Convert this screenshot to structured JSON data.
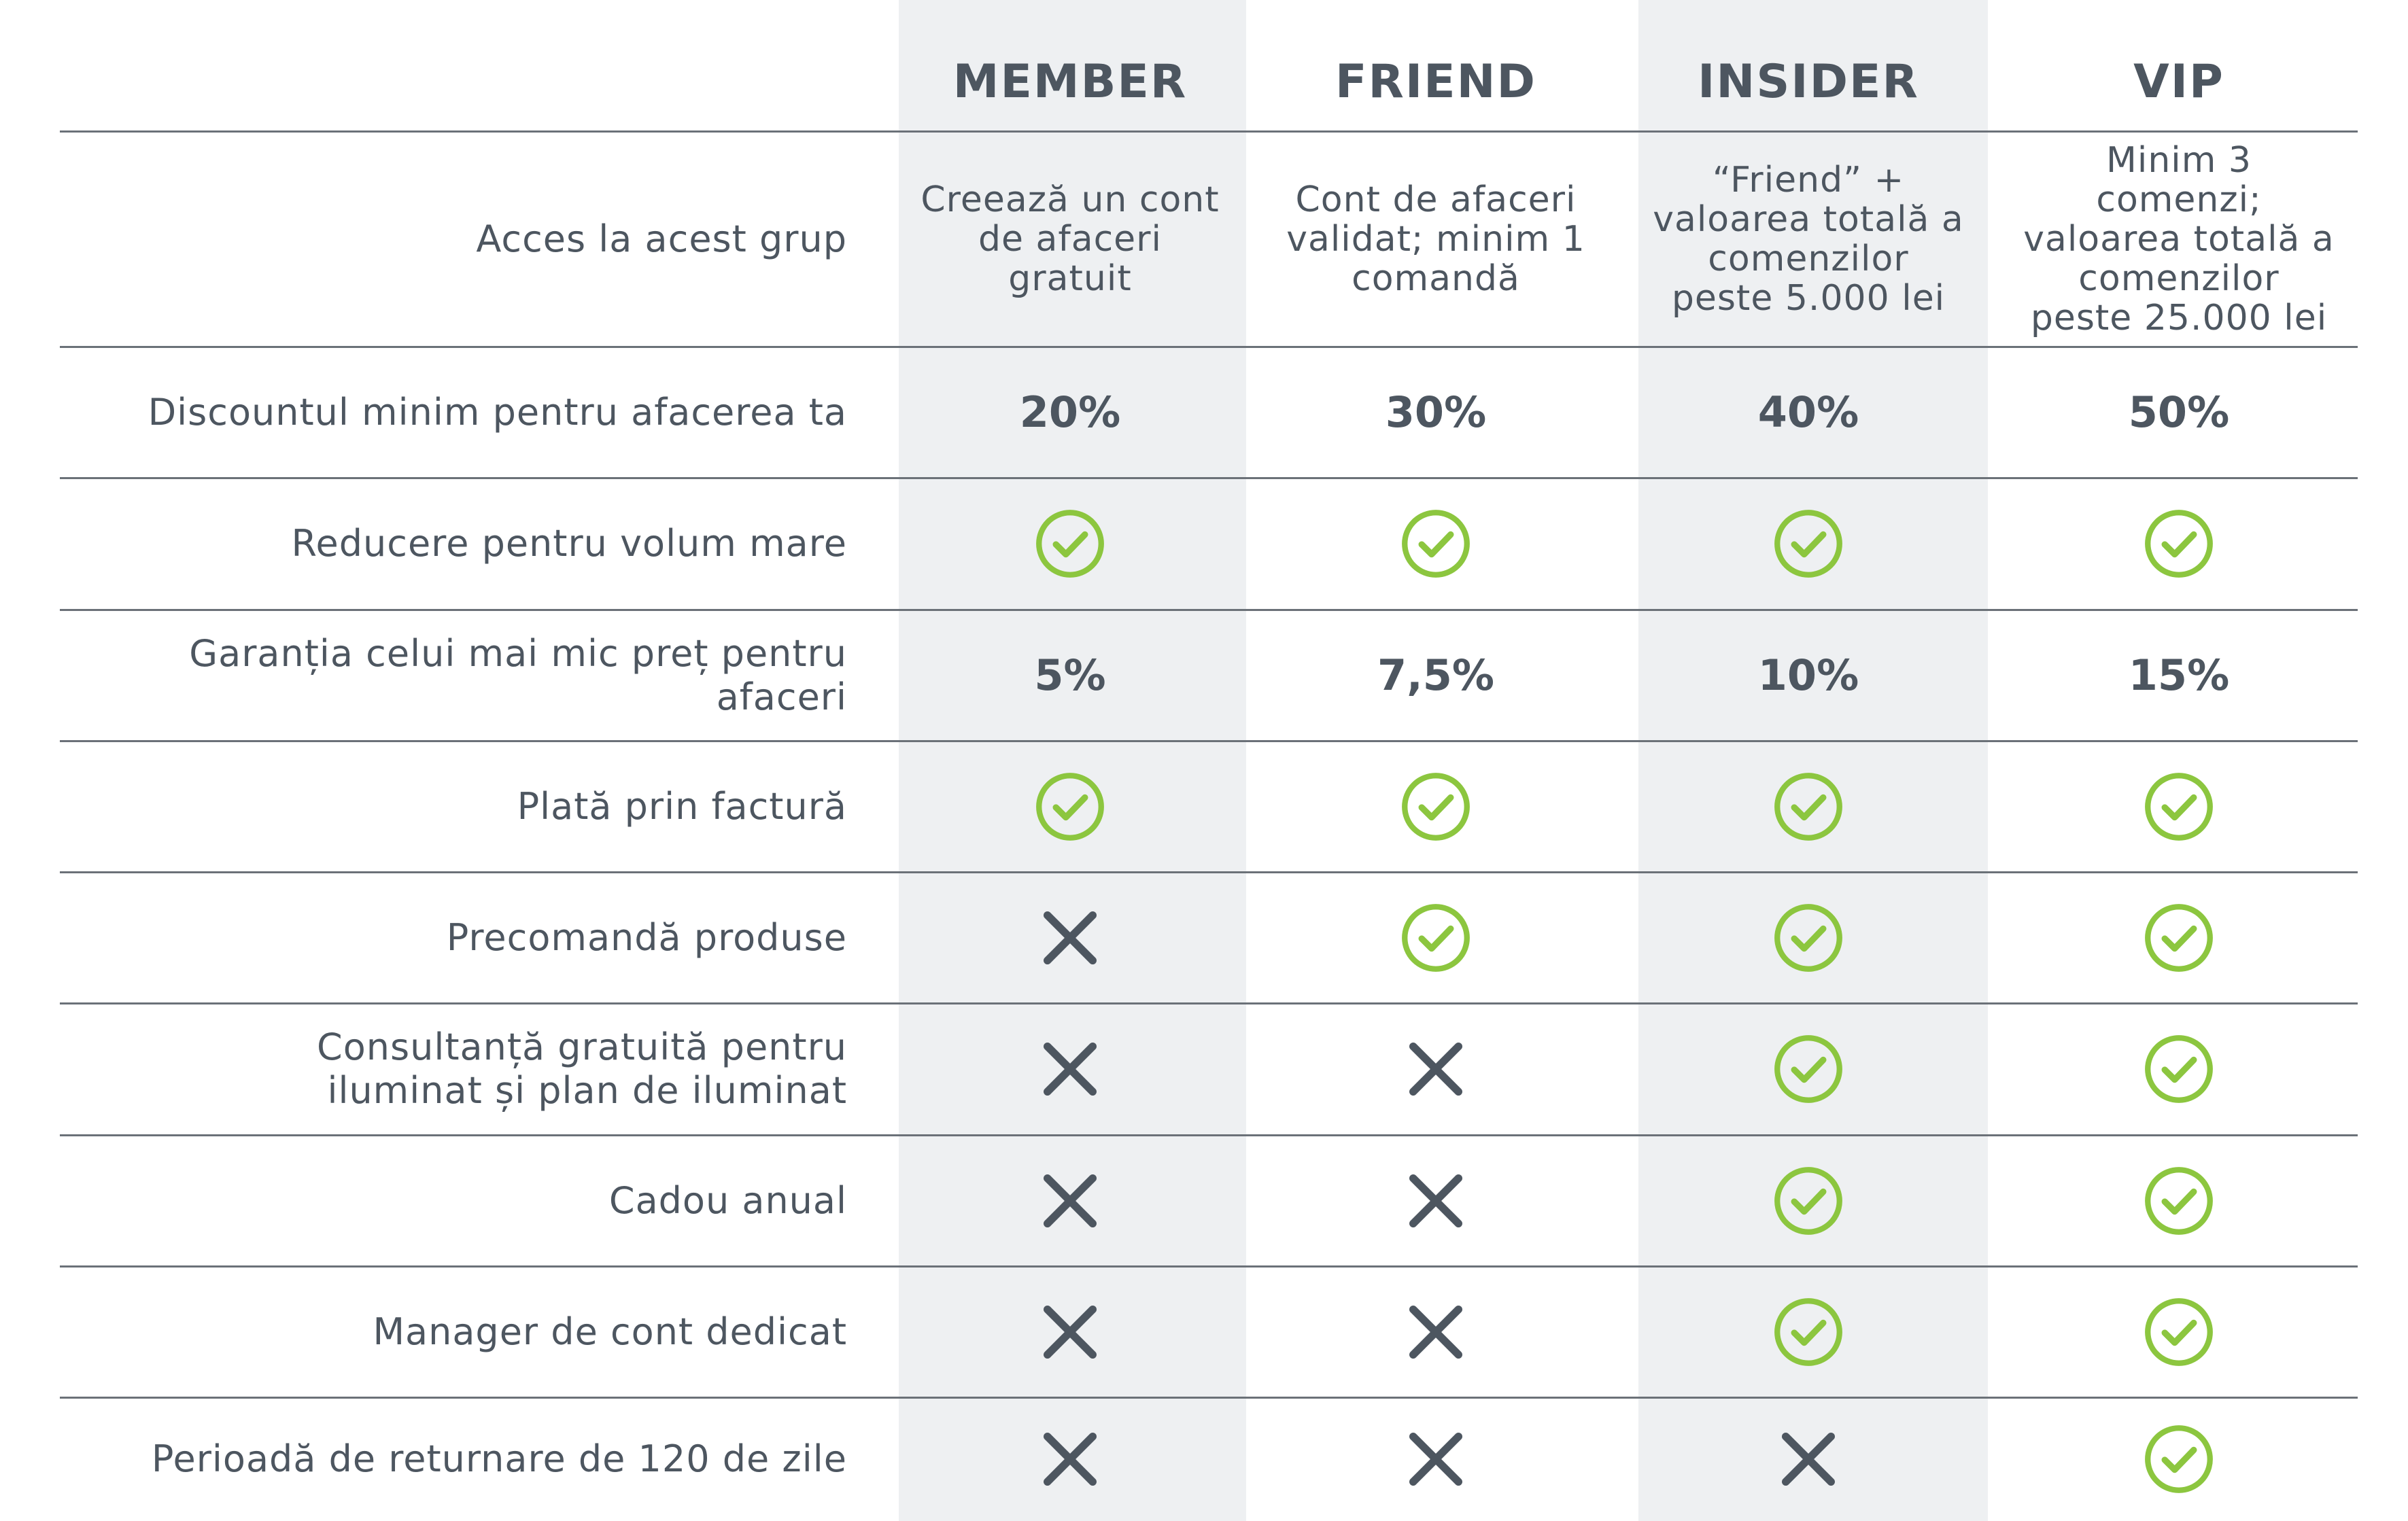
{
  "tiers": [
    "MEMBER",
    "FRIEND",
    "INSIDER",
    "VIP"
  ],
  "rows": [
    {
      "label": "Acces la acest grup",
      "cells": [
        {
          "type": "text",
          "value": "Creează un cont de afaceri gratuit"
        },
        {
          "type": "text",
          "value": "Cont de afaceri validat; minim 1 comandă"
        },
        {
          "type": "text",
          "value": "“Friend” + valoarea totală a comenzilor peste 5.000 lei"
        },
        {
          "type": "text",
          "value": "Minim 3 comenzi; valoarea totală a comenzilor peste 25.000 lei"
        }
      ]
    },
    {
      "label": "Discountul minim pentru afacerea ta",
      "cells": [
        {
          "type": "value",
          "value": "20%"
        },
        {
          "type": "value",
          "value": "30%"
        },
        {
          "type": "value",
          "value": "40%"
        },
        {
          "type": "value",
          "value": "50%"
        }
      ]
    },
    {
      "label": "Reducere pentru volum mare",
      "cells": [
        {
          "type": "check"
        },
        {
          "type": "check"
        },
        {
          "type": "check"
        },
        {
          "type": "check"
        }
      ]
    },
    {
      "label": "Garanția celui mai mic preț pentru afaceri",
      "cells": [
        {
          "type": "value",
          "value": "5%"
        },
        {
          "type": "value",
          "value": "7,5%"
        },
        {
          "type": "value",
          "value": "10%"
        },
        {
          "type": "value",
          "value": "15%"
        }
      ]
    },
    {
      "label": "Plată prin factură",
      "cells": [
        {
          "type": "check"
        },
        {
          "type": "check"
        },
        {
          "type": "check"
        },
        {
          "type": "check"
        }
      ]
    },
    {
      "label": "Precomandă produse",
      "cells": [
        {
          "type": "cross"
        },
        {
          "type": "check"
        },
        {
          "type": "check"
        },
        {
          "type": "check"
        }
      ]
    },
    {
      "label": "Consultanță gratuită pentru iluminat și plan de iluminat",
      "cells": [
        {
          "type": "cross"
        },
        {
          "type": "cross"
        },
        {
          "type": "check"
        },
        {
          "type": "check"
        }
      ]
    },
    {
      "label": "Cadou anual",
      "cells": [
        {
          "type": "cross"
        },
        {
          "type": "cross"
        },
        {
          "type": "check"
        },
        {
          "type": "check"
        }
      ]
    },
    {
      "label": "Manager de cont dedicat",
      "cells": [
        {
          "type": "cross"
        },
        {
          "type": "cross"
        },
        {
          "type": "check"
        },
        {
          "type": "check"
        }
      ]
    },
    {
      "label": "Perioadă de returnare de 120 de zile",
      "cells": [
        {
          "type": "cross"
        },
        {
          "type": "cross"
        },
        {
          "type": "cross"
        },
        {
          "type": "check"
        }
      ]
    }
  ],
  "icons": {
    "check": "check-circle-icon",
    "cross": "cross-icon"
  },
  "colors": {
    "check": "#8cc63f",
    "cross": "#4d5660",
    "shade": "#eef0f2",
    "text": "#4d5660"
  }
}
